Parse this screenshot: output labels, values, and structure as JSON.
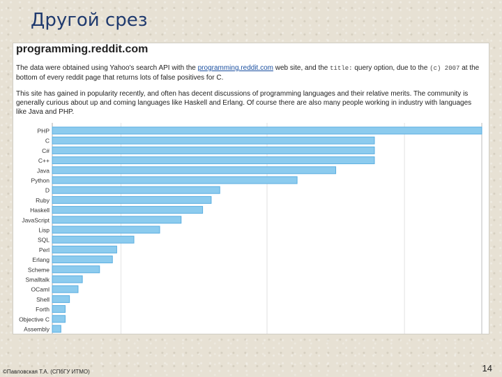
{
  "slide": {
    "title": "Другой срез",
    "footer": "©Павловская Т.А. (СПбГУ ИТМО)",
    "page_number": "14"
  },
  "panel": {
    "heading": "programming.reddit.com",
    "para1": {
      "t1": "The data were obtained using Yahoo's search API with the ",
      "link": "programming.reddit.com",
      "t2": " web site, and the ",
      "code1": "title:",
      "t3": " query option, due to the ",
      "code2": "(c) 2007",
      "t4": " at the bottom of every reddit page that returns lots of false positives for C."
    },
    "para2": "This site has gained in popularity recently, and often has decent discussions of programming languages and their relative merits. The community is generally curious about up and coming languages like Haskell and Erlang. Of course there are also many people working in industry with languages like Java and PHP."
  },
  "chart_data": {
    "type": "bar",
    "orientation": "horizontal",
    "categories": [
      "PHP",
      "C",
      "C#",
      "C++",
      "Java",
      "Python",
      "D",
      "Ruby",
      "Haskell",
      "JavaScript",
      "Lisp",
      "SQL",
      "Perl",
      "Erlang",
      "Scheme",
      "Smalltalk",
      "OCaml",
      "Shell",
      "Forth",
      "Objective C",
      "Assembly"
    ],
    "values": [
      100,
      75,
      75,
      75,
      66,
      57,
      39,
      37,
      35,
      30,
      25,
      19,
      15,
      14,
      11,
      7,
      6,
      4,
      3,
      3,
      2
    ],
    "xlim": [
      0,
      100
    ],
    "grid": true,
    "bar_color": "#8ccbee",
    "bar_border": "#5aaee0"
  }
}
